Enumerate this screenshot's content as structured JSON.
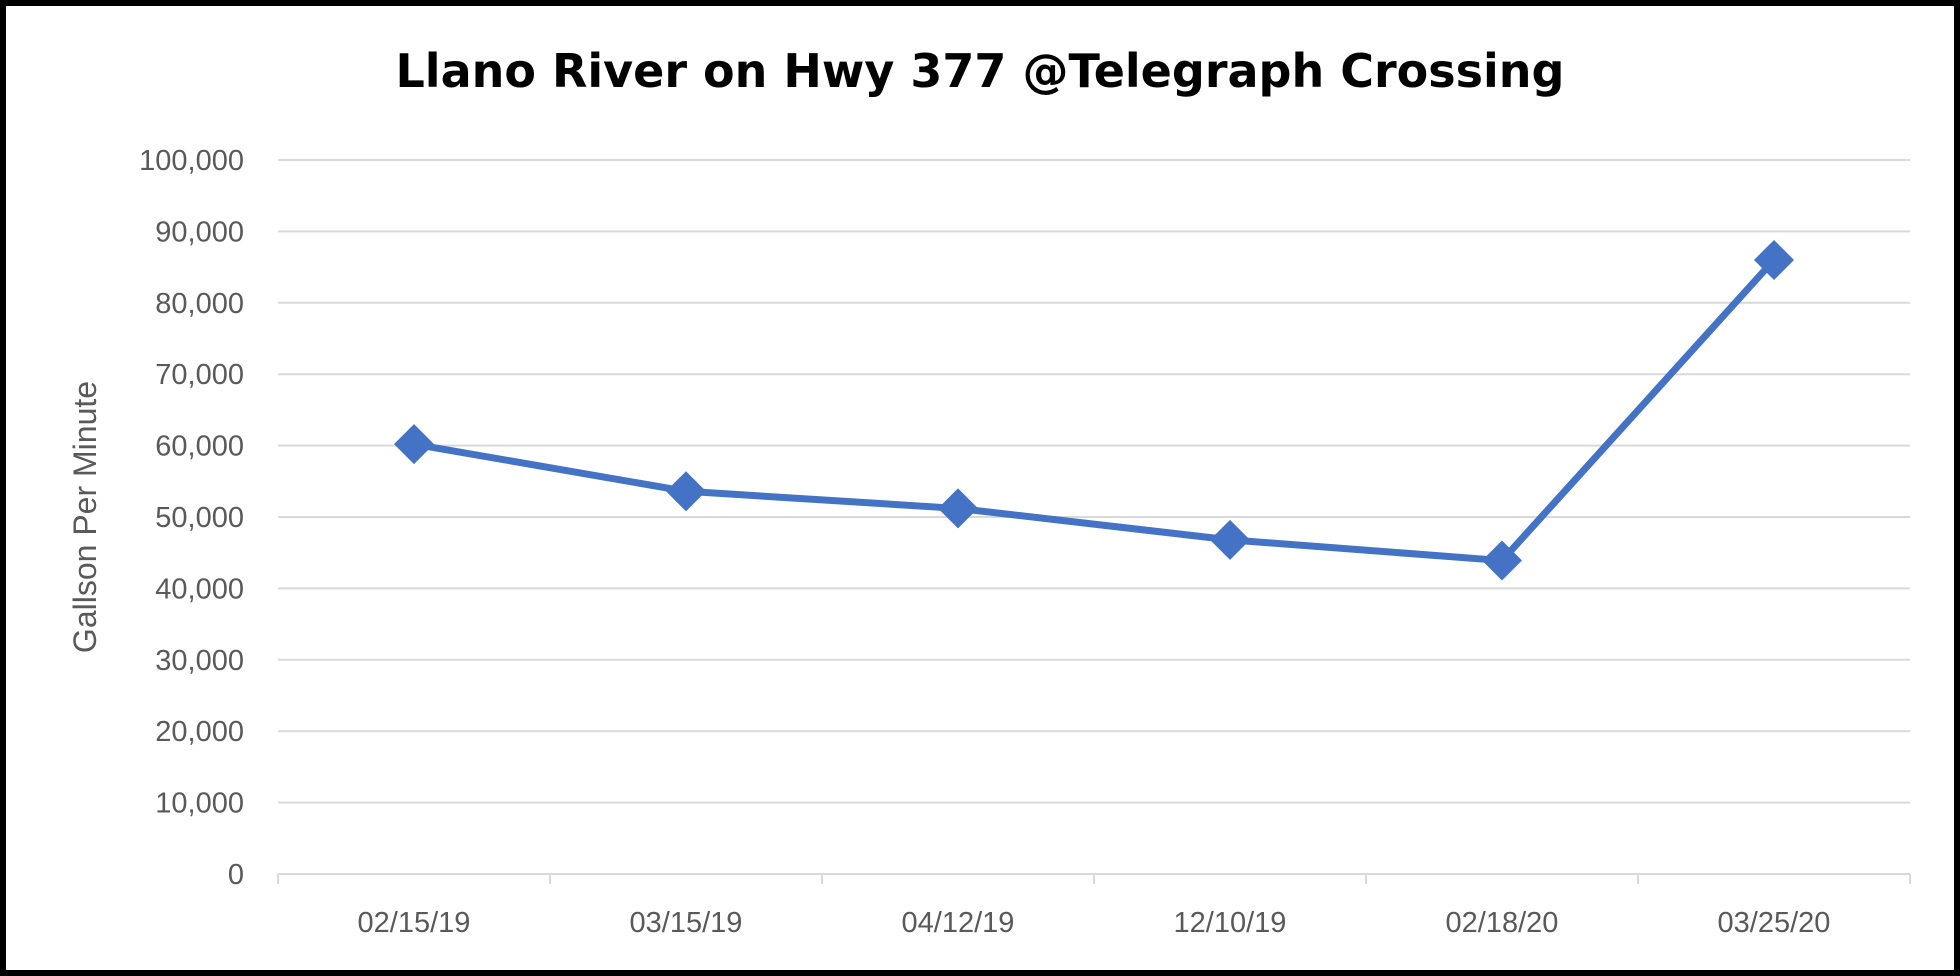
{
  "chart_data": {
    "type": "line",
    "title": "Llano River on Hwy 377 @Telegraph Crossing",
    "xlabel": "",
    "ylabel": "Gallson Per Minute",
    "categories": [
      "02/15/19",
      "03/15/19",
      "04/12/19",
      "12/10/19",
      "02/18/20",
      "03/25/20"
    ],
    "series": [
      {
        "values": [
          60200,
          53600,
          51200,
          46800,
          43900,
          86000
        ]
      }
    ],
    "ylim": [
      0,
      100000
    ],
    "yticks": [
      0,
      10000,
      20000,
      30000,
      40000,
      50000,
      60000,
      70000,
      80000,
      90000,
      100000
    ],
    "ytick_labels": [
      "0",
      "10,000",
      "20,000",
      "30,000",
      "40,000",
      "50,000",
      "60,000",
      "70,000",
      "80,000",
      "90,000",
      "100,000"
    ],
    "marker": "diamond",
    "grid": true,
    "legend": "none",
    "colors": {
      "series": "#4472C4",
      "grid": "#D9D9D9",
      "text": "#595959",
      "border": "#000000"
    }
  }
}
